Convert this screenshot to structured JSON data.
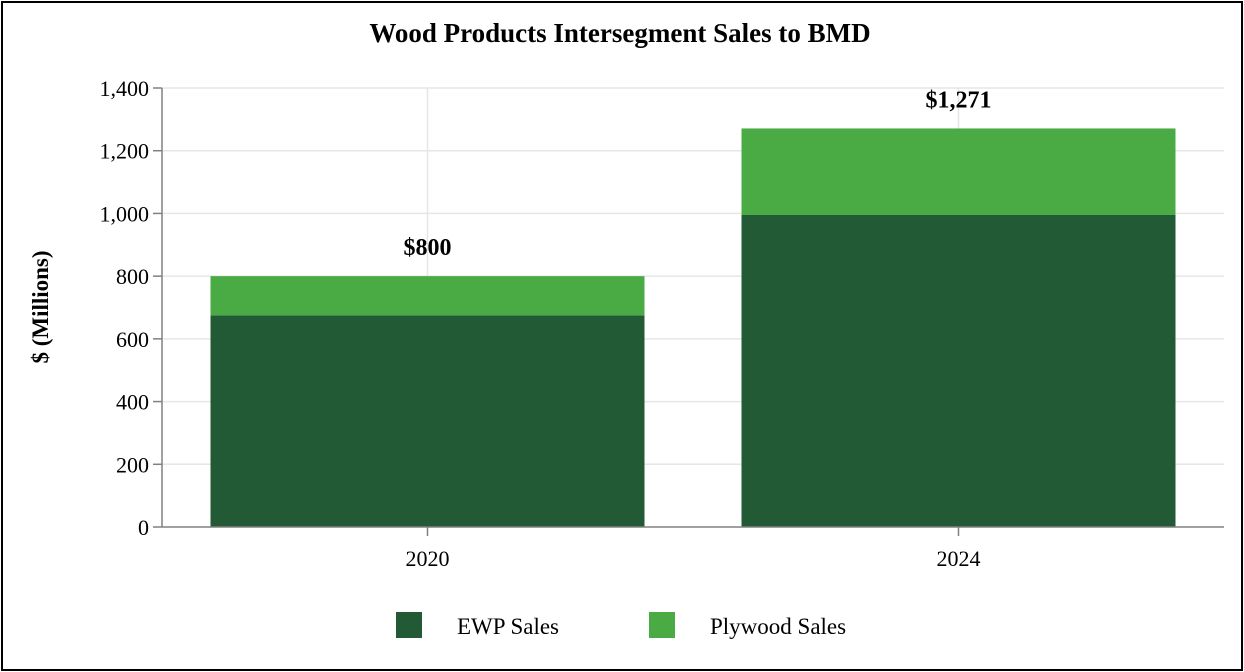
{
  "chart_data": {
    "type": "bar",
    "stacked": true,
    "title": "Wood Products Intersegment Sales to BMD",
    "xlabel": "",
    "ylabel": "$ (Millions)",
    "categories": [
      "2020",
      "2024"
    ],
    "series": [
      {
        "name": "EWP Sales",
        "values": [
          675,
          995
        ],
        "color": "#215a35"
      },
      {
        "name": "Plywood Sales",
        "values": [
          125,
          276
        ],
        "color": "#4aab45"
      }
    ],
    "totals": [
      "$800",
      "$1,271"
    ],
    "ylim": [
      0,
      1400
    ],
    "yticks": [
      0,
      200,
      400,
      600,
      800,
      1000,
      1200,
      1400
    ],
    "ytick_labels": [
      "0",
      "200",
      "400",
      "600",
      "800",
      "1,000",
      "1,200",
      "1,400"
    ],
    "grid": true,
    "legend_position": "bottom"
  }
}
